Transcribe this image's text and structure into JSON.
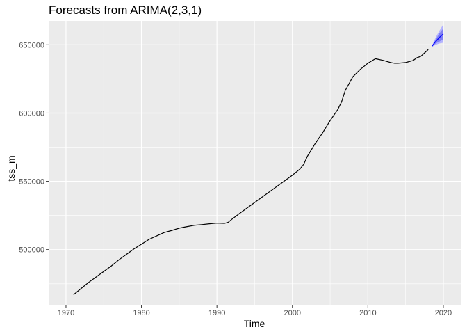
{
  "chart_data": {
    "type": "line",
    "title": "Forecasts from ARIMA(2,3,1)",
    "xlabel": "Time",
    "ylabel": "tss_m",
    "xlim": [
      1967.7,
      2022.4
    ],
    "ylim": [
      459600,
      667500
    ],
    "x_ticks": [
      1970,
      1980,
      1990,
      2000,
      2010,
      2020
    ],
    "x_minor_ticks": [
      1975,
      1985,
      1995,
      2005,
      2015
    ],
    "y_ticks": [
      500000,
      550000,
      600000,
      650000
    ],
    "y_tick_labels": [
      "500000",
      "550000",
      "600000",
      "650000"
    ],
    "y_minor_ticks": [
      475000,
      525000,
      575000,
      625000
    ],
    "grid": true,
    "legend": "none",
    "colors": {
      "panel": "#EBEBEB",
      "grid": "#FFFFFF",
      "line": "#000000",
      "forecast": "#0000FF",
      "band_95": "#B3B3FF",
      "band_80": "#7F7FF2"
    },
    "series": [
      {
        "x": [
          1971,
          1972,
          1973,
          1974,
          1975,
          1976,
          1977,
          1978,
          1979,
          1980,
          1981,
          1982,
          1983,
          1984,
          1985,
          1986,
          1987,
          1988,
          1989,
          1990,
          1991,
          1991.5,
          1992,
          1993,
          1994,
          1995,
          1996,
          1997,
          1998,
          1999,
          2000,
          2001,
          2001.5,
          2002,
          2003,
          2004,
          2004.5,
          2005,
          2006,
          2006.5,
          2007,
          2008,
          2009,
          2010,
          2011,
          2012,
          2013,
          2013.5,
          2014,
          2015,
          2016,
          2016.5,
          2017,
          2017.5,
          2018
        ],
        "values": [
          467000,
          471500,
          476000,
          480000,
          484000,
          488000,
          492500,
          496500,
          500500,
          504000,
          507500,
          510000,
          512500,
          514000,
          515700,
          516800,
          517800,
          518300,
          518900,
          519400,
          519200,
          520000,
          522300,
          526500,
          530500,
          534500,
          538500,
          542500,
          546500,
          550500,
          554500,
          559000,
          562500,
          568500,
          577500,
          585500,
          590000,
          594500,
          602500,
          608000,
          616500,
          626500,
          632000,
          636500,
          639800,
          638600,
          637000,
          636500,
          636500,
          637000,
          638500,
          640500,
          641500,
          644000,
          646500
        ]
      }
    ],
    "forecast": {
      "x": [
        2018.5,
        2019,
        2019.5,
        2020
      ],
      "mean": [
        649000,
        652500,
        655500,
        658000
      ],
      "lo80": [
        648700,
        651000,
        652500,
        654000
      ],
      "hi80": [
        649300,
        654000,
        658500,
        662000
      ],
      "lo95": [
        648500,
        650000,
        651000,
        651500
      ],
      "hi95": [
        649500,
        655500,
        660500,
        665000
      ]
    }
  }
}
